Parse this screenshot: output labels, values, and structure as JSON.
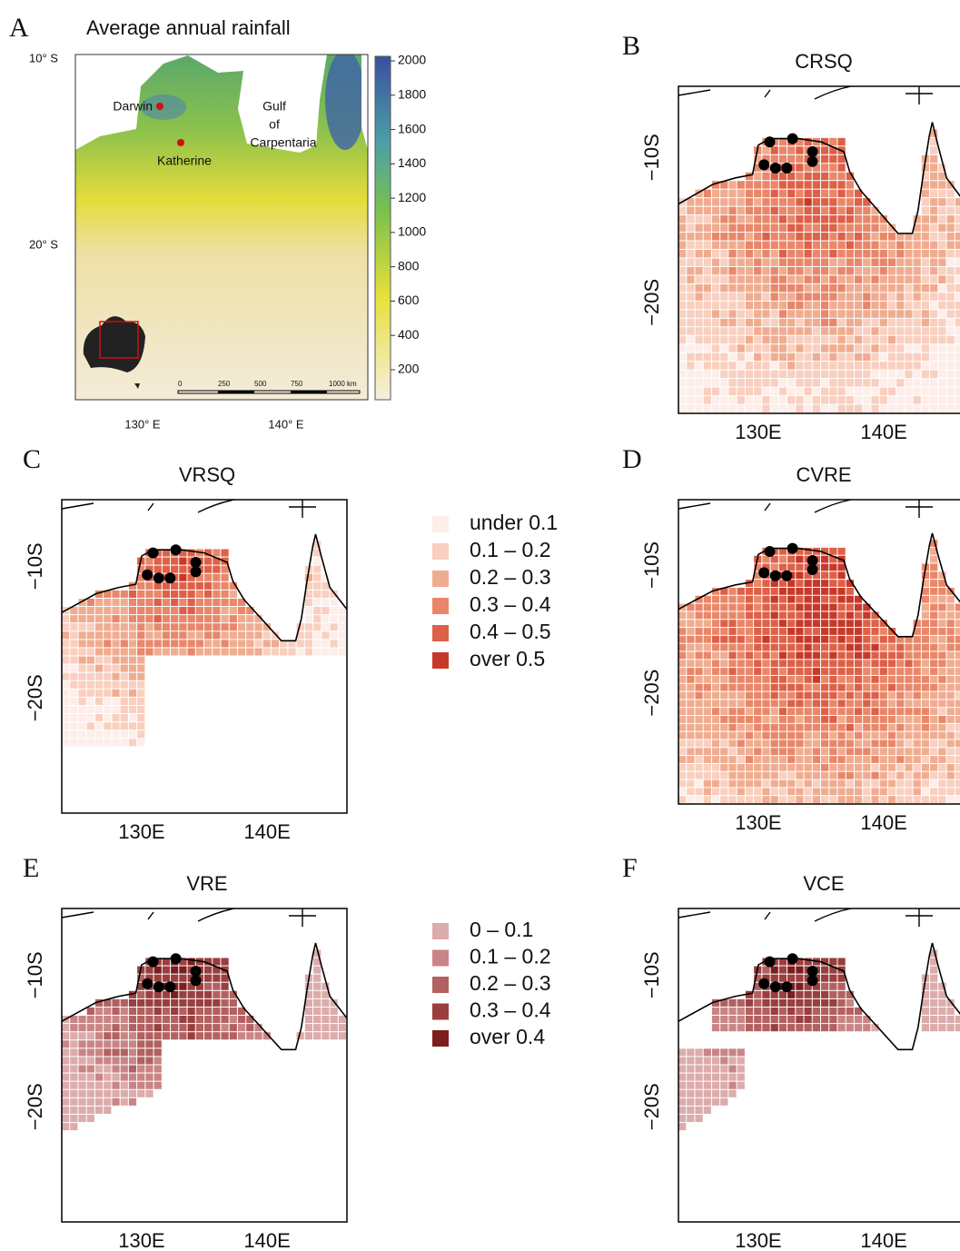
{
  "figure": {
    "panel_a": {
      "letter": "A",
      "title": "Average annual rainfall",
      "lat_labels": [
        "10° S",
        "20° S"
      ],
      "lon_labels": [
        "130° E",
        "140° E"
      ],
      "places": [
        "Darwin",
        "Katherine"
      ],
      "gulf_label": [
        "Gulf",
        "of",
        "Carpentaria"
      ],
      "colorbar_ticks": [
        2000,
        1800,
        1600,
        1400,
        1200,
        1000,
        800,
        600,
        400,
        200
      ],
      "scale_bar": [
        "0",
        "250",
        "500",
        "750",
        "1000 km"
      ]
    },
    "maps": [
      {
        "letter": "B",
        "title": "CRSQ",
        "y_labels": [
          "−10S",
          "−20S"
        ],
        "x_labels": [
          "130E",
          "140E"
        ]
      },
      {
        "letter": "C",
        "title": "VRSQ",
        "y_labels": [
          "−10S",
          "−20S"
        ],
        "x_labels": [
          "130E",
          "140E"
        ]
      },
      {
        "letter": "D",
        "title": "CVRE",
        "y_labels": [
          "−10S",
          "−20S"
        ],
        "x_labels": [
          "130E",
          "140E"
        ]
      },
      {
        "letter": "E",
        "title": "VRE",
        "y_labels": [
          "−10S",
          "−20S"
        ],
        "x_labels": [
          "130E",
          "140E"
        ]
      },
      {
        "letter": "F",
        "title": "VCE",
        "y_labels": [
          "−10S",
          "−20S"
        ],
        "x_labels": [
          "130E",
          "140E"
        ]
      }
    ],
    "legends": [
      {
        "items": [
          "under 0.1",
          "0.1 – 0.2",
          "0.2 – 0.3",
          "0.3 – 0.4",
          "0.4 – 0.5",
          "over 0.5"
        ],
        "colors": [
          "#fdeeea",
          "#f9cfbf",
          "#f0ac90",
          "#e8876a",
          "#dd6047",
          "#c8382a"
        ]
      },
      {
        "items": [
          "0 – 0.1",
          "0.1 – 0.2",
          "0.2 – 0.3",
          "0.3 – 0.4",
          "over 0.4"
        ],
        "colors": [
          "#dcabab",
          "#c98585",
          "#b36060",
          "#9a3e3e",
          "#7e1d1d"
        ]
      }
    ]
  }
}
